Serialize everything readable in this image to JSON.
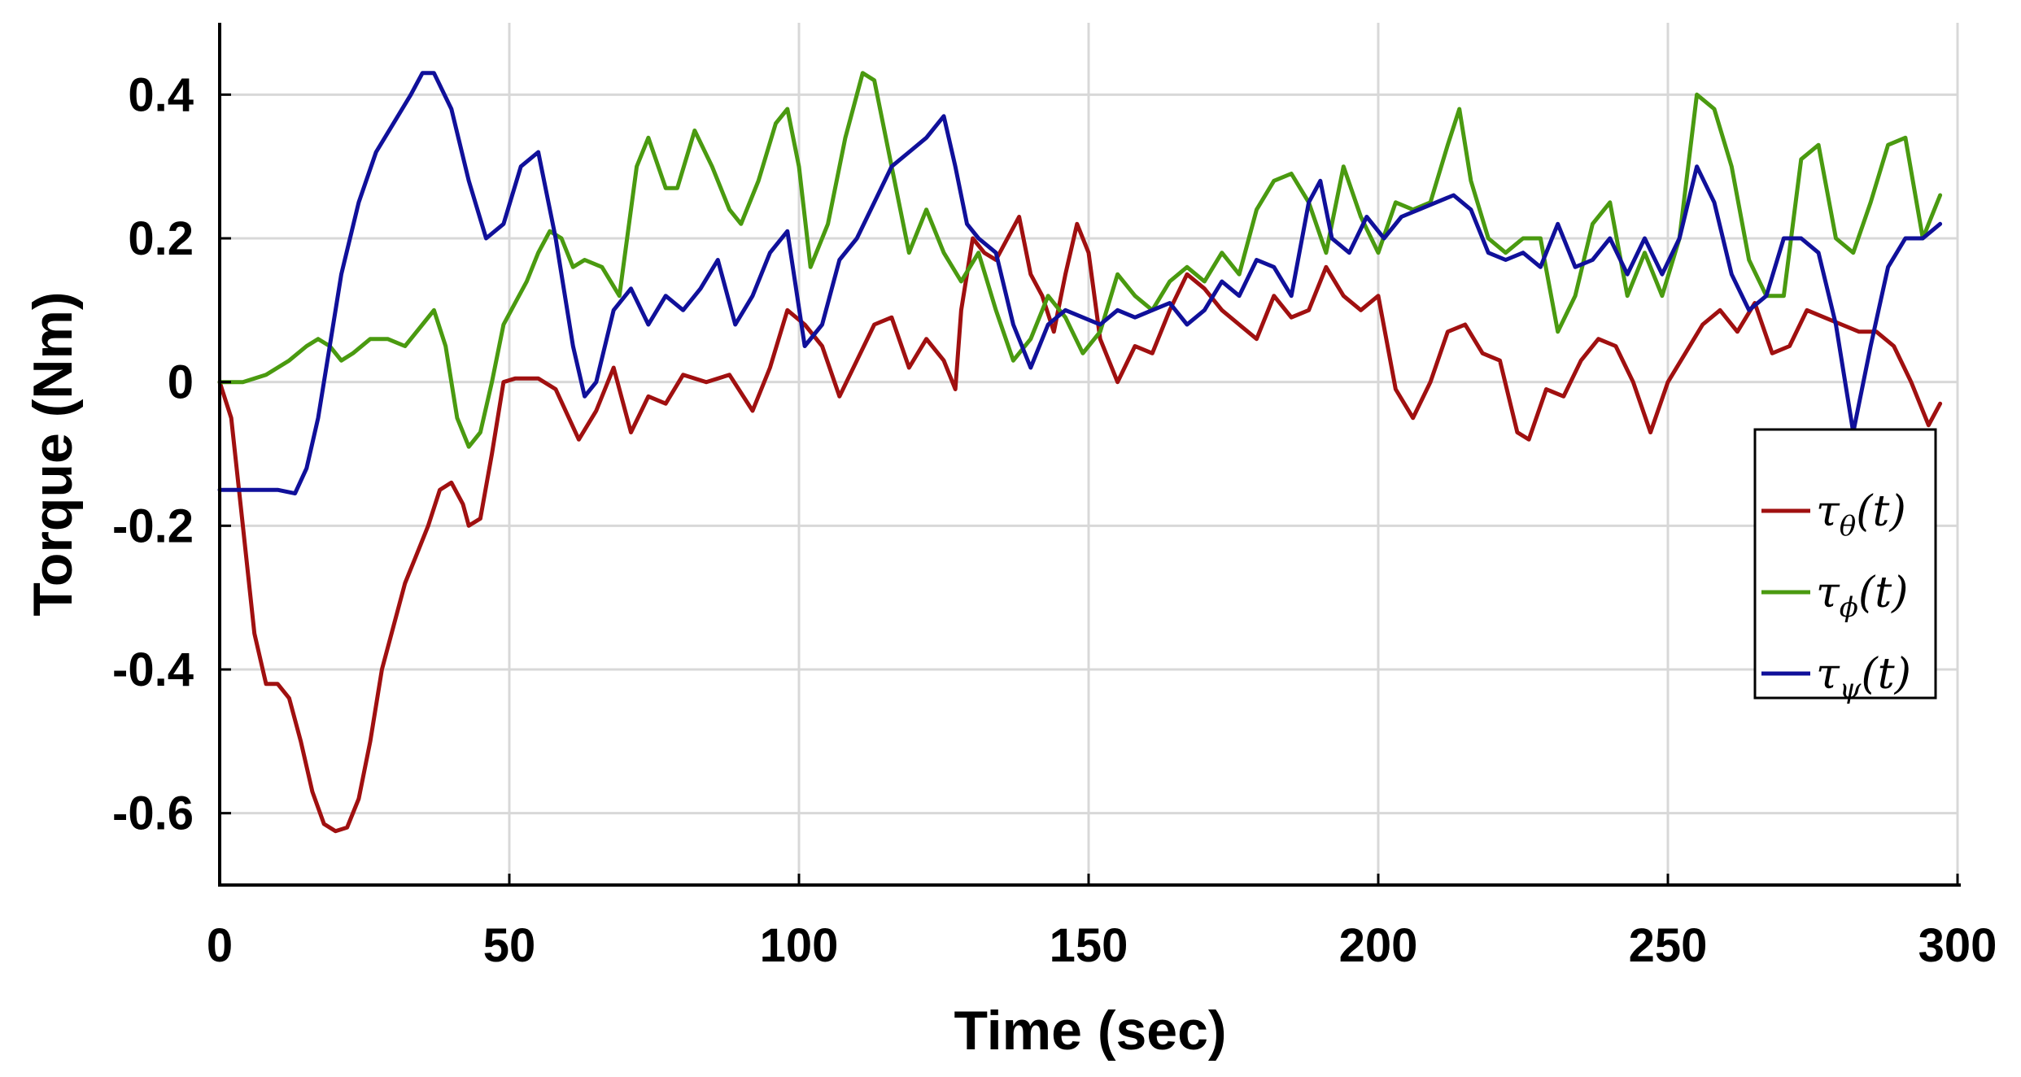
{
  "chart_data": {
    "type": "line",
    "xlabel": "Time (sec)",
    "ylabel": "Torque (Nm)",
    "xlim": [
      0,
      300
    ],
    "ylim": [
      -0.7,
      0.5
    ],
    "xticks": [
      0,
      50,
      100,
      150,
      200,
      250,
      300
    ],
    "xtick_labels": [
      "0",
      "50",
      "100",
      "150",
      "200",
      "250",
      "300"
    ],
    "yticks": [
      -0.6,
      -0.4,
      -0.2,
      0,
      0.2,
      0.4
    ],
    "ytick_labels": [
      "-0.6",
      "-0.4",
      "-0.2",
      "0",
      "0.2",
      "0.4"
    ],
    "grid": true,
    "legend_position": "right",
    "series": [
      {
        "name": "τθ(t)",
        "label_main": "τ",
        "label_sub": "θ",
        "label_arg": "(t)",
        "color": "#a01010",
        "x": [
          0,
          2,
          4,
          6,
          8,
          10,
          12,
          14,
          16,
          18,
          20,
          22,
          24,
          26,
          28,
          30,
          32,
          34,
          36,
          38,
          40,
          42,
          43,
          45,
          47,
          49,
          51,
          55,
          58,
          62,
          65,
          68,
          71,
          74,
          77,
          80,
          84,
          88,
          92,
          95,
          98,
          101,
          104,
          107,
          110,
          113,
          116,
          119,
          122,
          125,
          127,
          128,
          130,
          132,
          134,
          136,
          138,
          140,
          142,
          144,
          146,
          148,
          150,
          152,
          155,
          158,
          161,
          164,
          167,
          170,
          173,
          176,
          179,
          182,
          185,
          188,
          191,
          194,
          197,
          200,
          203,
          206,
          209,
          212,
          215,
          218,
          221,
          224,
          226,
          229,
          232,
          235,
          238,
          241,
          244,
          247,
          250,
          253,
          256,
          259,
          262,
          265,
          268,
          271,
          274,
          277,
          280,
          283,
          286,
          289,
          292,
          295,
          297
        ],
        "y": [
          0,
          -0.05,
          -0.2,
          -0.35,
          -0.42,
          -0.42,
          -0.44,
          -0.5,
          -0.57,
          -0.615,
          -0.625,
          -0.62,
          -0.58,
          -0.5,
          -0.4,
          -0.34,
          -0.28,
          -0.24,
          -0.2,
          -0.15,
          -0.14,
          -0.17,
          -0.2,
          -0.19,
          -0.1,
          0,
          0.005,
          0.005,
          -0.01,
          -0.08,
          -0.04,
          0.02,
          -0.07,
          -0.02,
          -0.03,
          0.01,
          0,
          0.01,
          -0.04,
          0.02,
          0.1,
          0.08,
          0.05,
          -0.02,
          0.03,
          0.08,
          0.09,
          0.02,
          0.06,
          0.03,
          -0.01,
          0.1,
          0.2,
          0.18,
          0.17,
          0.2,
          0.23,
          0.15,
          0.12,
          0.07,
          0.15,
          0.22,
          0.18,
          0.06,
          0,
          0.05,
          0.04,
          0.1,
          0.15,
          0.13,
          0.1,
          0.08,
          0.06,
          0.12,
          0.09,
          0.1,
          0.16,
          0.12,
          0.1,
          0.12,
          -0.01,
          -0.05,
          0,
          0.07,
          0.08,
          0.04,
          0.03,
          -0.07,
          -0.08,
          -0.01,
          -0.02,
          0.03,
          0.06,
          0.05,
          0,
          -0.07,
          0,
          0.04,
          0.08,
          0.1,
          0.07,
          0.11,
          0.04,
          0.05,
          0.1,
          0.09,
          0.08,
          0.07,
          0.07,
          0.05,
          0,
          -0.06,
          -0.03
        ]
      },
      {
        "name": "τϕ(t)",
        "label_main": "τ",
        "label_sub": "ϕ",
        "label_arg": "(t)",
        "color": "#4a9a10",
        "x": [
          0,
          4,
          8,
          12,
          15,
          17,
          19,
          21,
          23,
          26,
          29,
          32,
          35,
          37,
          39,
          41,
          43,
          45,
          47,
          49,
          51,
          53,
          55,
          57,
          59,
          61,
          63,
          66,
          69,
          72,
          74,
          77,
          79,
          82,
          85,
          88,
          90,
          93,
          96,
          98,
          100,
          102,
          105,
          108,
          111,
          113,
          116,
          119,
          122,
          125,
          128,
          131,
          134,
          137,
          140,
          143,
          146,
          149,
          152,
          155,
          158,
          161,
          164,
          167,
          170,
          173,
          176,
          179,
          182,
          185,
          188,
          191,
          194,
          197,
          200,
          203,
          206,
          209,
          212,
          214,
          216,
          219,
          222,
          225,
          228,
          231,
          234,
          237,
          240,
          243,
          246,
          249,
          252,
          255,
          258,
          261,
          264,
          267,
          270,
          273,
          276,
          279,
          282,
          285,
          288,
          291,
          294,
          297
        ],
        "y": [
          0,
          0,
          0.01,
          0.03,
          0.05,
          0.06,
          0.05,
          0.03,
          0.04,
          0.06,
          0.06,
          0.05,
          0.08,
          0.1,
          0.05,
          -0.05,
          -0.09,
          -0.07,
          0,
          0.08,
          0.11,
          0.14,
          0.18,
          0.21,
          0.2,
          0.16,
          0.17,
          0.16,
          0.12,
          0.3,
          0.34,
          0.27,
          0.27,
          0.35,
          0.3,
          0.24,
          0.22,
          0.28,
          0.36,
          0.38,
          0.3,
          0.16,
          0.22,
          0.34,
          0.43,
          0.42,
          0.3,
          0.18,
          0.24,
          0.18,
          0.14,
          0.18,
          0.1,
          0.03,
          0.06,
          0.12,
          0.09,
          0.04,
          0.07,
          0.15,
          0.12,
          0.1,
          0.14,
          0.16,
          0.14,
          0.18,
          0.15,
          0.24,
          0.28,
          0.29,
          0.25,
          0.18,
          0.3,
          0.23,
          0.18,
          0.25,
          0.24,
          0.25,
          0.33,
          0.38,
          0.28,
          0.2,
          0.18,
          0.2,
          0.2,
          0.07,
          0.12,
          0.22,
          0.25,
          0.12,
          0.18,
          0.12,
          0.2,
          0.4,
          0.38,
          0.3,
          0.17,
          0.12,
          0.12,
          0.31,
          0.33,
          0.2,
          0.18,
          0.25,
          0.33,
          0.34,
          0.2,
          0.26
        ]
      },
      {
        "name": "τψ(t)",
        "label_main": "τ",
        "label_sub": "ψ",
        "label_arg": "(t)",
        "color": "#10109a",
        "x": [
          0,
          5,
          10,
          13,
          15,
          17,
          19,
          21,
          24,
          27,
          30,
          33,
          35,
          37,
          40,
          43,
          46,
          49,
          52,
          55,
          58,
          61,
          63,
          65,
          68,
          71,
          74,
          77,
          80,
          83,
          86,
          89,
          92,
          95,
          98,
          101,
          104,
          107,
          110,
          113,
          116,
          119,
          122,
          125,
          127,
          129,
          131,
          134,
          137,
          140,
          143,
          146,
          149,
          152,
          155,
          158,
          161,
          164,
          167,
          170,
          173,
          176,
          179,
          182,
          185,
          188,
          190,
          192,
          195,
          198,
          201,
          204,
          207,
          210,
          213,
          216,
          219,
          222,
          225,
          228,
          231,
          234,
          237,
          240,
          243,
          246,
          249,
          252,
          255,
          258,
          261,
          264,
          267,
          270,
          273,
          276,
          279,
          282,
          285,
          288,
          291,
          294,
          297
        ],
        "y": [
          -0.15,
          -0.15,
          -0.15,
          -0.155,
          -0.12,
          -0.05,
          0.05,
          0.15,
          0.25,
          0.32,
          0.36,
          0.4,
          0.43,
          0.43,
          0.38,
          0.28,
          0.2,
          0.22,
          0.3,
          0.32,
          0.2,
          0.05,
          -0.02,
          0,
          0.1,
          0.13,
          0.08,
          0.12,
          0.1,
          0.13,
          0.17,
          0.08,
          0.12,
          0.18,
          0.21,
          0.05,
          0.08,
          0.17,
          0.2,
          0.25,
          0.3,
          0.32,
          0.34,
          0.37,
          0.3,
          0.22,
          0.2,
          0.18,
          0.08,
          0.02,
          0.08,
          0.1,
          0.09,
          0.08,
          0.1,
          0.09,
          0.1,
          0.11,
          0.08,
          0.1,
          0.14,
          0.12,
          0.17,
          0.16,
          0.12,
          0.25,
          0.28,
          0.2,
          0.18,
          0.23,
          0.2,
          0.23,
          0.24,
          0.25,
          0.26,
          0.24,
          0.18,
          0.17,
          0.18,
          0.16,
          0.22,
          0.16,
          0.17,
          0.2,
          0.15,
          0.2,
          0.15,
          0.2,
          0.3,
          0.25,
          0.15,
          0.1,
          0.12,
          0.2,
          0.2,
          0.18,
          0.08,
          -0.07,
          0.05,
          0.16,
          0.2,
          0.2,
          0.22
        ]
      }
    ]
  }
}
